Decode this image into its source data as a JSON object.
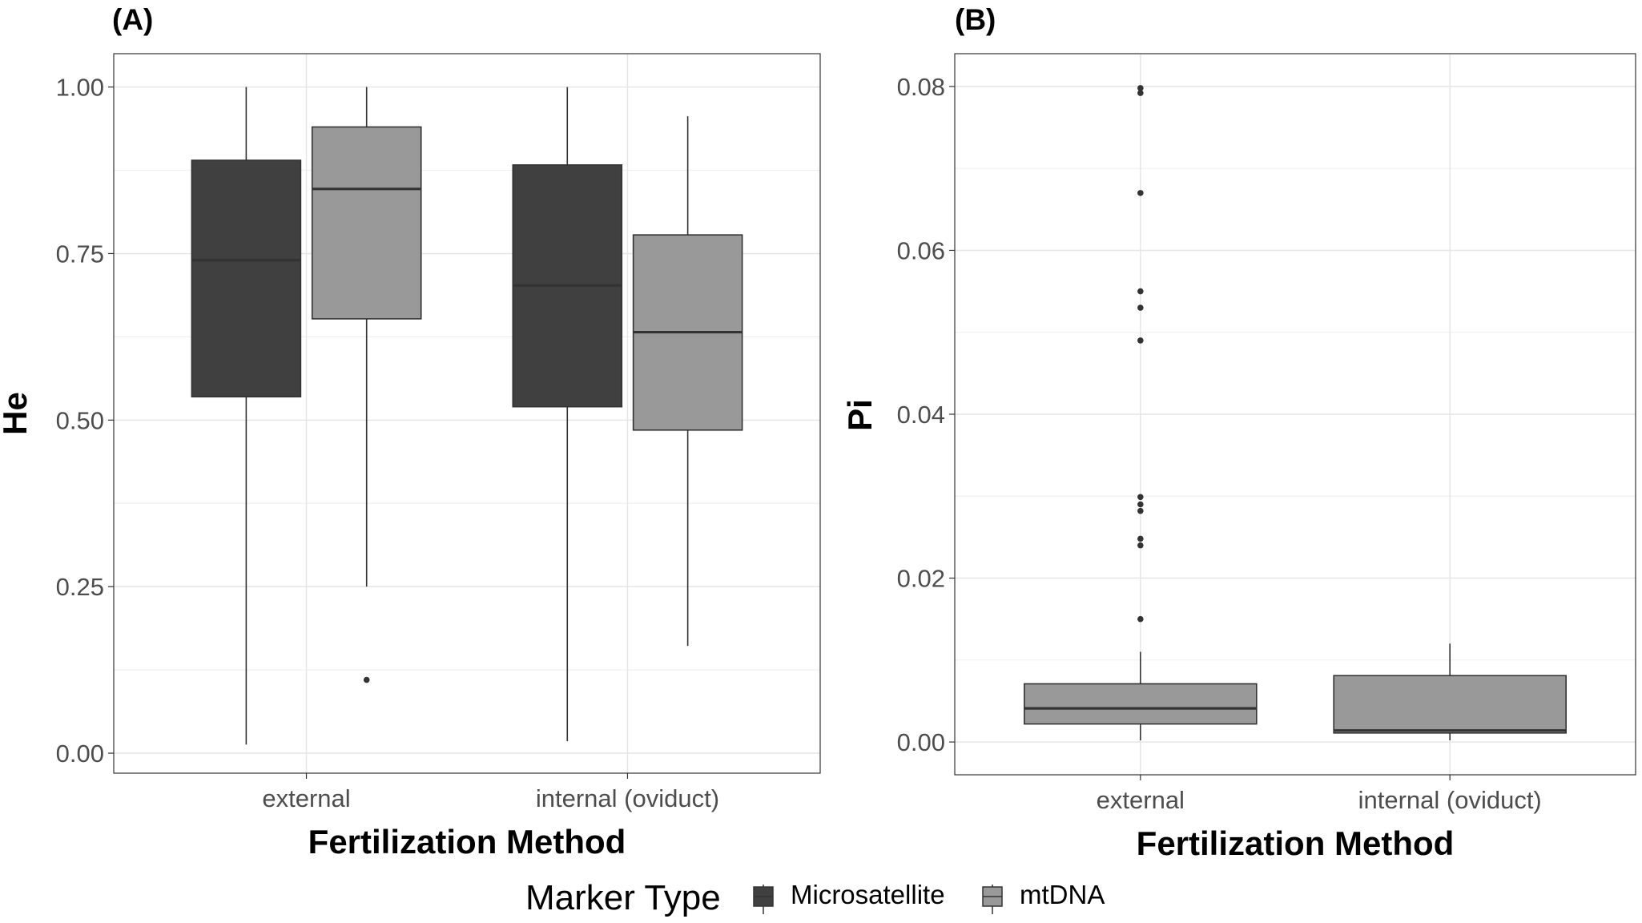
{
  "legend": {
    "title": "Marker Type",
    "items": [
      {
        "label": "Microsatellite",
        "color": "#404040"
      },
      {
        "label": "mtDNA",
        "color": "#999999"
      }
    ]
  },
  "chart_data": [
    {
      "type": "box",
      "panel_label": "(A)",
      "xlabel": "Fertilization Method",
      "ylabel": "He",
      "categories": [
        "external",
        "internal (oviduct)"
      ],
      "ylim": [
        -0.03,
        1.05
      ],
      "yticks": [
        0.0,
        0.25,
        0.5,
        0.75,
        1.0
      ],
      "ytick_labels": [
        "0.00",
        "0.25",
        "0.50",
        "0.75",
        "1.00"
      ],
      "grid": true,
      "series": [
        {
          "name": "Microsatellite",
          "color": "#404040",
          "boxes": [
            {
              "category": "external",
              "min": 0.013,
              "q1": 0.535,
              "median": 0.74,
              "q3": 0.89,
              "max": 1.0,
              "outliers": []
            },
            {
              "category": "internal (oviduct)",
              "min": 0.018,
              "q1": 0.52,
              "median": 0.702,
              "q3": 0.883,
              "max": 1.0,
              "outliers": []
            }
          ]
        },
        {
          "name": "mtDNA",
          "color": "#999999",
          "boxes": [
            {
              "category": "external",
              "min": 0.25,
              "q1": 0.652,
              "median": 0.847,
              "q3": 0.94,
              "max": 1.0,
              "outliers": [
                0.11
              ]
            },
            {
              "category": "internal (oviduct)",
              "min": 0.161,
              "q1": 0.485,
              "median": 0.632,
              "q3": 0.778,
              "max": 0.956,
              "outliers": []
            }
          ]
        }
      ]
    },
    {
      "type": "box",
      "panel_label": "(B)",
      "xlabel": "Fertilization Method",
      "ylabel": "Pi",
      "categories": [
        "external",
        "internal (oviduct)"
      ],
      "ylim": [
        -0.004,
        0.084
      ],
      "yticks": [
        0.0,
        0.02,
        0.04,
        0.06,
        0.08
      ],
      "ytick_labels": [
        "0.00",
        "0.02",
        "0.04",
        "0.06",
        "0.08"
      ],
      "grid": true,
      "series": [
        {
          "name": "mtDNA",
          "color": "#999999",
          "boxes": [
            {
              "category": "external",
              "min": 0.0002,
              "q1": 0.0022,
              "median": 0.0041,
              "q3": 0.0071,
              "max": 0.011,
              "outliers": [
                0.015,
                0.024,
                0.0248,
                0.0282,
                0.029,
                0.0299,
                0.049,
                0.053,
                0.055,
                0.067,
                0.0792,
                0.0798
              ]
            },
            {
              "category": "internal (oviduct)",
              "min": 0.0002,
              "q1": 0.0011,
              "median": 0.0014,
              "q3": 0.0081,
              "max": 0.012,
              "outliers": []
            }
          ]
        }
      ]
    }
  ]
}
